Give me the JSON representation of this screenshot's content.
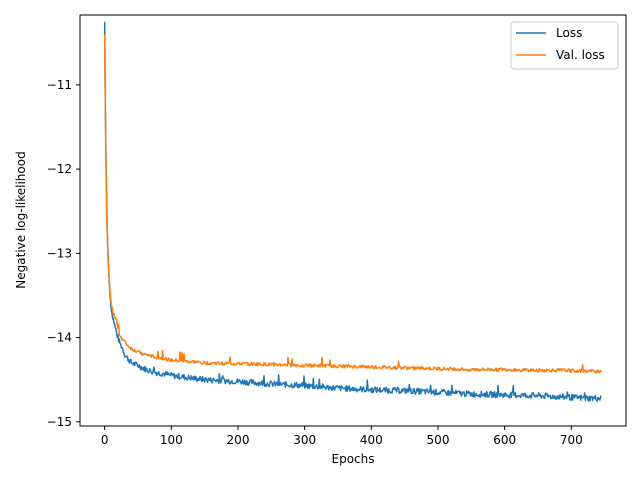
{
  "chart_data": {
    "type": "line",
    "title": "",
    "xlabel": "Epochs",
    "ylabel": "Negative log-likelihood",
    "xlim": [
      -37,
      782
    ],
    "ylim": [
      -15.05,
      -10.17
    ],
    "xticks": [
      0,
      100,
      200,
      300,
      400,
      500,
      600,
      700
    ],
    "yticks": [
      -15,
      -14,
      -13,
      -12,
      -11
    ],
    "xtick_labels": [
      "0",
      "100",
      "200",
      "300",
      "400",
      "500",
      "600",
      "700"
    ],
    "ytick_labels": [
      "−15",
      "−14",
      "−13",
      "−12",
      "−11"
    ],
    "grid": false,
    "legend_position": "top-right",
    "series": [
      {
        "name": "Loss",
        "color": "#1f77b4",
        "x": [
          0,
          1,
          2,
          3,
          4,
          5,
          6,
          8,
          10,
          12,
          15,
          18,
          20,
          22,
          25,
          28,
          30,
          35,
          40,
          50,
          60,
          70,
          80,
          90,
          100,
          120,
          150,
          200,
          250,
          300,
          350,
          400,
          450,
          500,
          550,
          600,
          650,
          700,
          720,
          745
        ],
        "y": [
          -10.25,
          -11.2,
          -11.9,
          -12.4,
          -12.75,
          -13.0,
          -13.2,
          -13.5,
          -13.65,
          -13.75,
          -13.85,
          -13.95,
          -14.0,
          -14.05,
          -14.1,
          -14.15,
          -14.2,
          -14.25,
          -14.3,
          -14.33,
          -14.37,
          -14.4,
          -14.42,
          -14.43,
          -14.45,
          -14.47,
          -14.5,
          -14.52,
          -14.55,
          -14.57,
          -14.6,
          -14.62,
          -14.63,
          -14.65,
          -14.67,
          -14.68,
          -14.69,
          -14.71,
          -14.72,
          -14.72
        ]
      },
      {
        "name": "Val. loss",
        "color": "#ff7f0e",
        "x": [
          0,
          1,
          2,
          3,
          4,
          5,
          6,
          8,
          10,
          12,
          15,
          18,
          20,
          22,
          25,
          28,
          30,
          35,
          40,
          50,
          60,
          70,
          80,
          90,
          100,
          120,
          150,
          200,
          250,
          300,
          350,
          400,
          450,
          500,
          550,
          600,
          650,
          700,
          720,
          745
        ],
        "y": [
          -10.4,
          -11.3,
          -12.0,
          -12.5,
          -12.8,
          -13.05,
          -13.2,
          -13.45,
          -13.6,
          -13.7,
          -13.75,
          -13.8,
          -13.9,
          -13.95,
          -14.0,
          -14.03,
          -14.05,
          -14.1,
          -14.13,
          -14.17,
          -14.2,
          -14.22,
          -14.24,
          -14.25,
          -14.27,
          -14.28,
          -14.3,
          -14.31,
          -14.32,
          -14.33,
          -14.34,
          -14.35,
          -14.36,
          -14.37,
          -14.38,
          -14.38,
          -14.39,
          -14.39,
          -14.4,
          -14.4
        ]
      }
    ]
  }
}
